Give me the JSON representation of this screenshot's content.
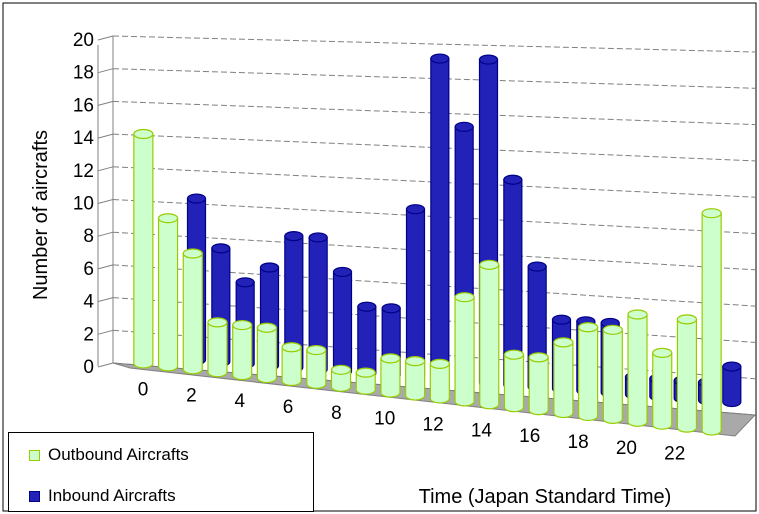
{
  "chart_data": {
    "type": "bar",
    "title": "",
    "xlabel": "Time (Japan Standard Time)",
    "ylabel": "Number of aircrafts",
    "ylim": [
      0,
      20
    ],
    "yticks": [
      "0",
      "2",
      "4",
      "6",
      "8",
      "10",
      "12",
      "14",
      "16",
      "18",
      "20"
    ],
    "xtick_labels": [
      "0",
      "2",
      "4",
      "6",
      "8",
      "10",
      "12",
      "14",
      "16",
      "18",
      "20",
      "22"
    ],
    "categories": [
      "0",
      "1",
      "2",
      "3",
      "4",
      "5",
      "6",
      "7",
      "8",
      "9",
      "10",
      "11",
      "12",
      "13",
      "14",
      "15",
      "16",
      "17",
      "18",
      "19",
      "20",
      "21",
      "22",
      "23"
    ],
    "grid": true,
    "projection": "3d",
    "legend_position": "bottom-left",
    "series": [
      {
        "name": "Outbound Aircrafts",
        "color": "#ccffcc",
        "edge_color": "#99cc00",
        "values": [
          14,
          9,
          7,
          3,
          3,
          3,
          2,
          2,
          1,
          1,
          2,
          2,
          2,
          6,
          8,
          3,
          3,
          4,
          5,
          5,
          6,
          4,
          6,
          12
        ]
      },
      {
        "name": "Inbound Aircrafts",
        "color": "#2222b8",
        "edge_color": "#000088",
        "values": [
          0,
          10,
          7,
          5,
          6,
          8,
          8,
          6,
          4,
          4,
          10,
          19,
          15,
          19,
          12,
          7,
          4,
          4,
          4,
          1,
          1,
          1,
          1,
          2
        ]
      }
    ]
  }
}
